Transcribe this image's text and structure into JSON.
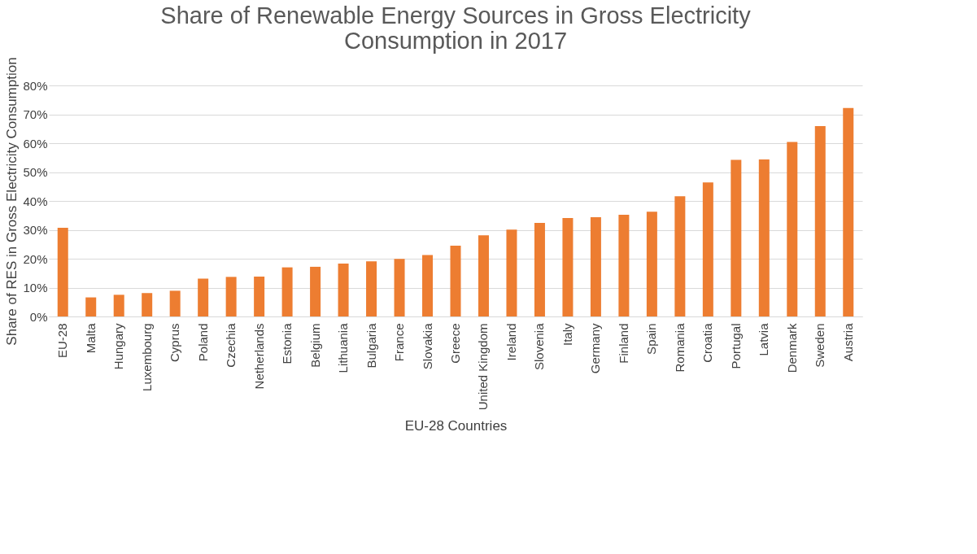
{
  "chart_data": {
    "type": "bar",
    "title": [
      "Share of Renewable Energy Sources in Gross Electricity",
      "Consumption in 2017"
    ],
    "xlabel": "EU-28 Countries",
    "ylabel": "Share of RES in Gross Electricity Consumption",
    "categories": [
      "EU-28",
      "Malta",
      "Hungary",
      "Luxembourg",
      "Cyprus",
      "Poland",
      "Czechia",
      "Netherlands",
      "Estonia",
      "Belgium",
      "Lithuania",
      "Bulgaria",
      "France",
      "Slovakia",
      "Greece",
      "United Kingdom",
      "Ireland",
      "Slovenia",
      "Italy",
      "Germany",
      "Finland",
      "Spain",
      "Romania",
      "Croatia",
      "Portugal",
      "Latvia",
      "Denmark",
      "Sweden",
      "Austria"
    ],
    "values": [
      30.7,
      6.6,
      7.5,
      8.1,
      8.9,
      13.1,
      13.7,
      13.8,
      17.0,
      17.2,
      18.3,
      19.1,
      19.9,
      21.3,
      24.5,
      28.1,
      30.1,
      32.4,
      34.1,
      34.4,
      35.2,
      36.3,
      41.6,
      46.4,
      54.2,
      54.4,
      60.4,
      65.9,
      72.2
    ],
    "color": "#ed7d31",
    "ylim": [
      0,
      80
    ],
    "yticks": [
      {
        "value": 0,
        "label": "0%"
      },
      {
        "value": 10,
        "label": "10%"
      },
      {
        "value": 20,
        "label": "20%"
      },
      {
        "value": 30,
        "label": "30%"
      },
      {
        "value": 40,
        "label": "40%"
      },
      {
        "value": 50,
        "label": "50%"
      },
      {
        "value": 60,
        "label": "60%"
      },
      {
        "value": 70,
        "label": "70%"
      },
      {
        "value": 80,
        "label": "80%"
      }
    ],
    "grid": "y"
  }
}
